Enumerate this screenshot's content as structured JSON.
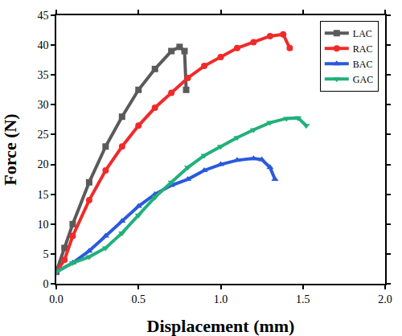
{
  "chart_data": {
    "type": "line",
    "x_label": "Displacement (mm)",
    "y_label": "Force (N)",
    "xlim": [
      0,
      2
    ],
    "ylim": [
      0,
      45
    ],
    "xticks": [
      {
        "value": 0,
        "label": "0.0"
      },
      {
        "value": 0.5,
        "label": "0.5"
      },
      {
        "value": 1,
        "label": "1.0"
      },
      {
        "value": 1.5,
        "label": "1.5"
      },
      {
        "value": 2,
        "label": "2.0"
      }
    ],
    "yticks": [
      0,
      5,
      10,
      15,
      20,
      25,
      30,
      35,
      40,
      45
    ],
    "legend": "upper right",
    "grid": false,
    "series": [
      {
        "name": "LAC",
        "color": "#5a5a5a",
        "marker": "square",
        "x": [
          0,
          0.05,
          0.1,
          0.2,
          0.3,
          0.4,
          0.5,
          0.6,
          0.7,
          0.75,
          0.78,
          0.79
        ],
        "values": [
          2,
          6,
          10,
          17,
          23,
          28,
          32.5,
          36,
          39,
          39.7,
          39,
          32.5
        ]
      },
      {
        "name": "RAC",
        "color": "#f02a2a",
        "marker": "circle",
        "x": [
          0,
          0.05,
          0.1,
          0.2,
          0.3,
          0.4,
          0.5,
          0.6,
          0.7,
          0.8,
          0.9,
          1.0,
          1.1,
          1.2,
          1.3,
          1.38,
          1.42
        ],
        "values": [
          2,
          4,
          8,
          14,
          19,
          23,
          26.5,
          29.5,
          32,
          34.5,
          36.5,
          38,
          39.5,
          40.5,
          41.5,
          41.8,
          39.5
        ]
      },
      {
        "name": "BAC",
        "color": "#2a5adb",
        "marker": "triangle-up",
        "x": [
          0,
          0.1,
          0.2,
          0.3,
          0.4,
          0.5,
          0.6,
          0.7,
          0.8,
          0.9,
          1.0,
          1.1,
          1.2,
          1.25,
          1.3,
          1.33
        ],
        "values": [
          2,
          3.5,
          5.5,
          8,
          10.5,
          13,
          15,
          16.5,
          17.5,
          19,
          20,
          20.7,
          21,
          20.8,
          19.5,
          17.5
        ]
      },
      {
        "name": "GAC",
        "color": "#22b07a",
        "marker": "triangle-down",
        "x": [
          0,
          0.1,
          0.2,
          0.3,
          0.4,
          0.5,
          0.6,
          0.7,
          0.8,
          0.9,
          1.0,
          1.1,
          1.2,
          1.3,
          1.4,
          1.47,
          1.52
        ],
        "values": [
          2,
          3.5,
          4.5,
          6,
          8.5,
          11.5,
          14.5,
          17,
          19.5,
          21.5,
          23,
          24.5,
          25.8,
          27,
          27.7,
          27.8,
          26.5
        ]
      }
    ]
  }
}
